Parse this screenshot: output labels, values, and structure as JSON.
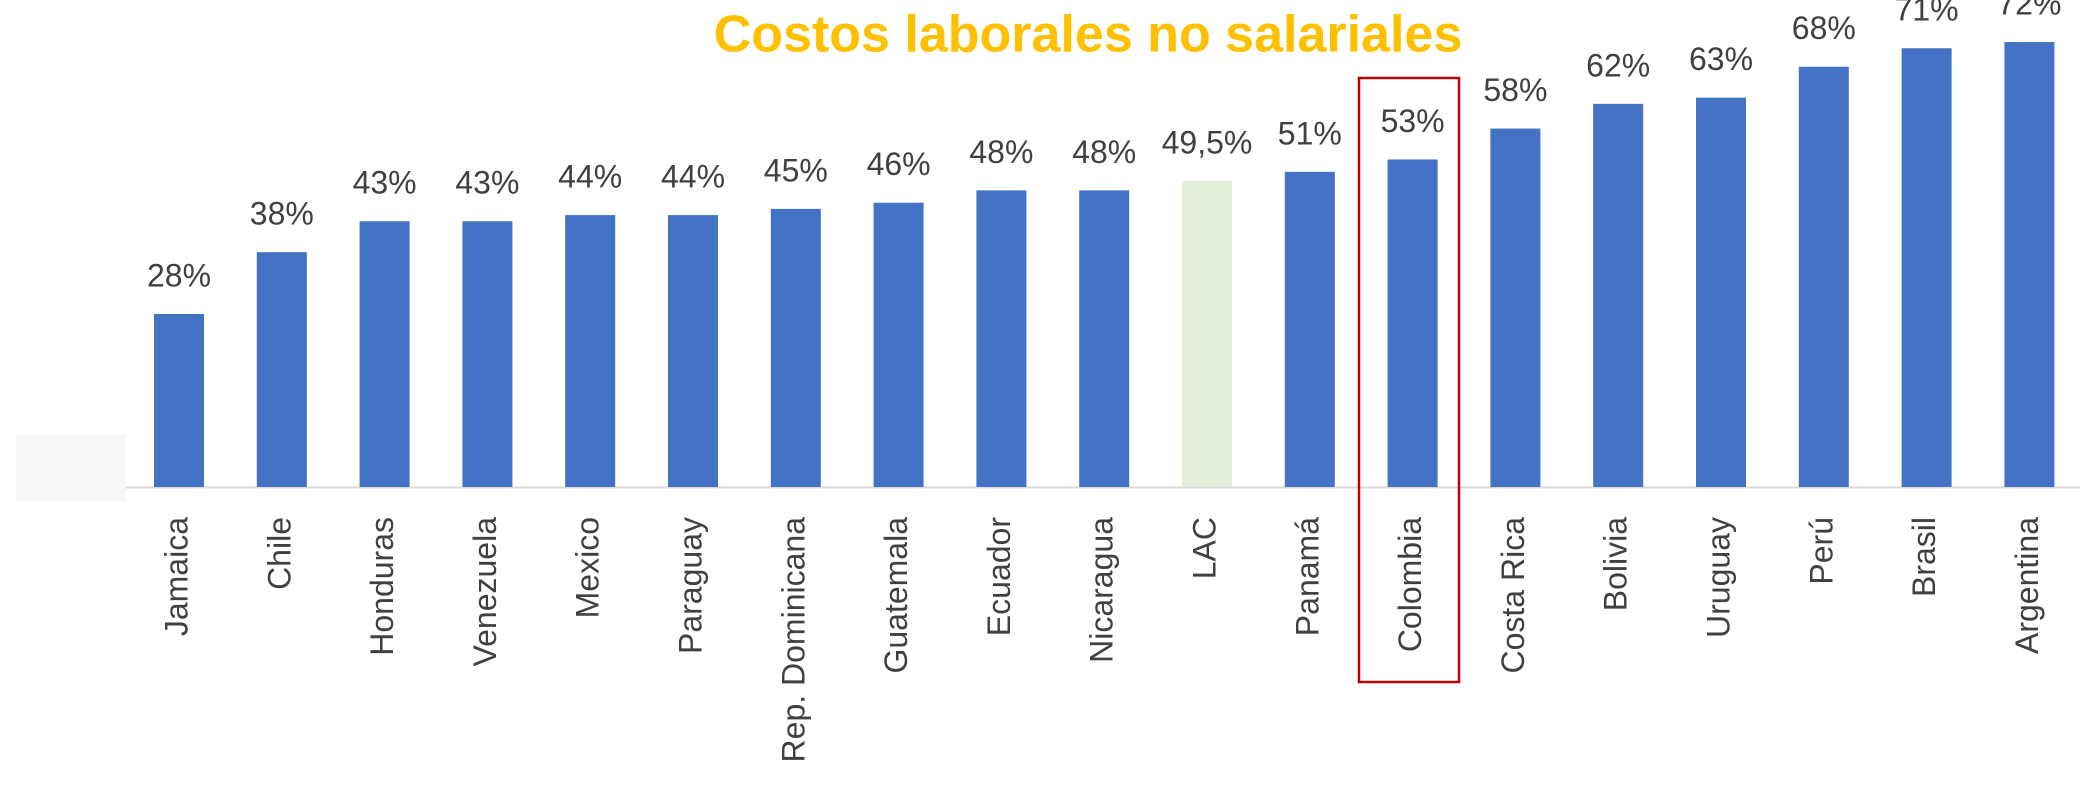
{
  "chart_data": {
    "type": "bar",
    "title": "Costos laborales no salariales",
    "categories": [
      "Jamaica",
      "Chile",
      "Honduras",
      "Venezuela",
      "Mexico",
      "Paraguay",
      "Rep. Dominicana",
      "Guatemala",
      "Ecuador",
      "Nicaragua",
      "LAC",
      "Panamá",
      "Colombia",
      "Costa Rica",
      "Bolivia",
      "Uruguay",
      "Perú",
      "Brasil",
      "Argentina"
    ],
    "values": [
      28,
      38,
      43,
      43,
      44,
      44,
      45,
      46,
      48,
      48,
      49.5,
      51,
      53,
      58,
      62,
      63,
      68,
      71,
      72
    ],
    "value_labels": [
      "28%",
      "38%",
      "43%",
      "43%",
      "44%",
      "44%",
      "45%",
      "46%",
      "48%",
      "48%",
      "49,5%",
      "51%",
      "53%",
      "58%",
      "62%",
      "63%",
      "68%",
      "71%",
      "72%"
    ],
    "colors": [
      "#4472c4",
      "#4472c4",
      "#4472c4",
      "#4472c4",
      "#4472c4",
      "#4472c4",
      "#4472c4",
      "#4472c4",
      "#4472c4",
      "#4472c4",
      "#e2efda",
      "#4472c4",
      "#4472c4",
      "#4472c4",
      "#4472c4",
      "#4472c4",
      "#4472c4",
      "#4472c4",
      "#4472c4"
    ]
  }
}
